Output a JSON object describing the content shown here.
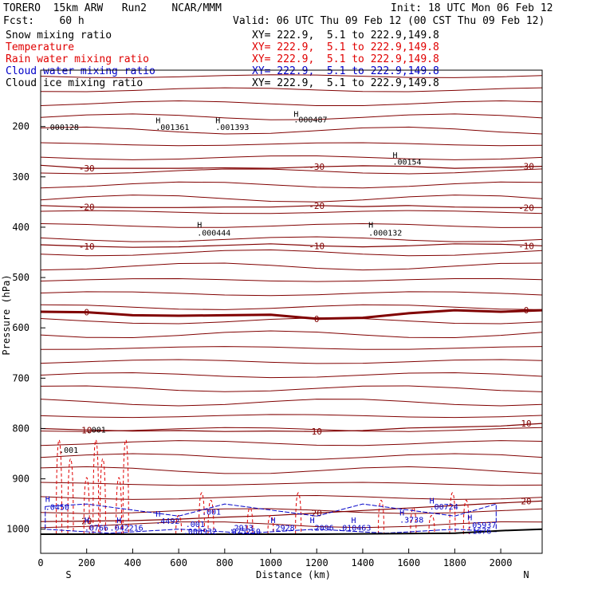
{
  "header": {
    "model": "TORERO  15km ARW   Run2    NCAR/MMM",
    "init": "Init: 18 UTC Mon 06 Feb 12",
    "fcst": "Fcst:    60 h",
    "valid": "Valid: 06 UTC Thu 09 Feb 12 (00 CST Thu 09 Feb 12)"
  },
  "legend": [
    {
      "label": "Snow mixing ratio",
      "xy": "XY= 222.9,  5.1 to 222.9,149.8",
      "color": "#000000"
    },
    {
      "label": "Temperature",
      "xy": "XY= 222.9,  5.1 to 222.9,149.8",
      "color": "#e00000"
    },
    {
      "label": "Rain water mixing ratio",
      "xy": "XY= 222.9,  5.1 to 222.9,149.8",
      "color": "#e00000"
    },
    {
      "label": "Cloud water mixing ratio",
      "xy": "XY= 222.9,  5.1 to 222.9,149.8",
      "color": "#0000c8"
    },
    {
      "label": "Cloud ice mixing ratio",
      "xy": "XY= 222.9,  5.1 to 222.9,149.8",
      "color": "#000000"
    }
  ],
  "chart_data": {
    "type": "line",
    "xlabel": "Distance (km)",
    "ylabel": "Pressure (hPa)",
    "xlim": [
      0,
      2180
    ],
    "ylim_hpa": [
      1048,
      88
    ],
    "x_ticks": [
      0,
      200,
      400,
      600,
      800,
      1000,
      1200,
      1400,
      1600,
      1800,
      2000
    ],
    "y_ticks": [
      200,
      300,
      400,
      500,
      600,
      700,
      800,
      900,
      1000
    ],
    "endpoints": {
      "left": "S",
      "right": "N"
    },
    "colors": {
      "temperature": "#800000",
      "rain": "#e00000",
      "cloud_water": "#0000c8",
      "snow": "#000000"
    },
    "temperature_isotherms": [
      {
        "label": "-30",
        "p": [
          277,
          283,
          283,
          283,
          282,
          283,
          280,
          278,
          279,
          283,
          281,
          279
        ]
      },
      {
        "label": "-20",
        "p": [
          357,
          360,
          361,
          361,
          360,
          360,
          357,
          359,
          357,
          360,
          361,
          361
        ]
      },
      {
        "label": "-10",
        "p": [
          435,
          438,
          440,
          439,
          436,
          433,
          437,
          439,
          437,
          433,
          434,
          437
        ]
      },
      {
        "label": "0",
        "p": [
          568,
          569,
          575,
          576,
          575,
          574,
          582,
          580,
          571,
          565,
          568,
          565
        ]
      },
      {
        "label": "10",
        "p": [
          800,
          803,
          805,
          804,
          806,
          805,
          806,
          804,
          799,
          797,
          795,
          790
        ]
      },
      {
        "label": "20",
        "p": [
          985,
          984,
          983,
          980,
          976,
          973,
          968,
          963,
          958,
          953,
          948,
          944
        ]
      }
    ],
    "isotherm_x": [
      0,
      200,
      400,
      600,
      800,
      1000,
      1200,
      1400,
      1600,
      1800,
      2000,
      2180
    ],
    "annotations": [
      {
        "text": "H",
        "x": 500,
        "p": 193
      },
      {
        "text": ".001361",
        "x": 500,
        "p": 207
      },
      {
        "text": "H",
        "x": 760,
        "p": 193
      },
      {
        "text": ".001393",
        "x": 760,
        "p": 207
      },
      {
        "text": "H",
        "x": 1100,
        "p": 181
      },
      {
        "text": ".000487",
        "x": 1100,
        "p": 192
      },
      {
        "text": ".000128",
        "x": 20,
        "p": 207
      },
      {
        "text": "H",
        "x": 1530,
        "p": 262
      },
      {
        "text": ".00154",
        "x": 1530,
        "p": 276
      },
      {
        "text": "H",
        "x": 680,
        "p": 401
      },
      {
        "text": ".000444",
        "x": 680,
        "p": 417
      },
      {
        "text": "H",
        "x": 1425,
        "p": 401
      },
      {
        "text": ".000132",
        "x": 1425,
        "p": 417
      },
      {
        "text": "H",
        "x": 20,
        "p": 946
      },
      {
        "text": ".0450",
        "x": 20,
        "p": 962
      },
      {
        "text": ".001",
        "x": 200,
        "p": 808
      },
      {
        "text": ".001",
        "x": 80,
        "p": 848
      },
      {
        "text": "H",
        "x": 500,
        "p": 975
      },
      {
        "text": ".4492",
        "x": 500,
        "p": 989
      },
      {
        "text": ".001",
        "x": 700,
        "p": 971
      },
      {
        "text": "H",
        "x": 1560,
        "p": 973
      },
      {
        "text": ".3738",
        "x": 1560,
        "p": 987
      },
      {
        "text": "H",
        "x": 1690,
        "p": 949
      },
      {
        "text": ".00724",
        "x": 1690,
        "p": 961
      },
      {
        "text": "H",
        "x": 1855,
        "p": 982
      },
      {
        "text": ".05937",
        "x": 1855,
        "p": 997
      },
      {
        "text": ".1676",
        "x": 1855,
        "p": 1009
      },
      {
        "text": "H",
        "x": 190,
        "p": 988
      },
      {
        "text": ".0766",
        "x": 190,
        "p": 1003
      },
      {
        "text": ".042216",
        "x": 300,
        "p": 1003
      },
      {
        "text": "H",
        "x": 330,
        "p": 988
      },
      {
        "text": ".001",
        "x": 630,
        "p": 996
      },
      {
        "text": ".000932",
        "x": 620,
        "p": 1010
      },
      {
        "text": ".2913",
        "x": 820,
        "p": 1003
      },
      {
        "text": ".075250",
        "x": 810,
        "p": 1010
      },
      {
        "text": "H",
        "x": 1000,
        "p": 988
      },
      {
        "text": ".2928",
        "x": 1000,
        "p": 1003
      },
      {
        "text": "H",
        "x": 1170,
        "p": 988
      },
      {
        "text": ".2096",
        "x": 1170,
        "p": 1003
      },
      {
        "text": ".010463",
        "x": 1290,
        "p": 1003
      },
      {
        "text": "H",
        "x": 1350,
        "p": 988
      }
    ]
  }
}
